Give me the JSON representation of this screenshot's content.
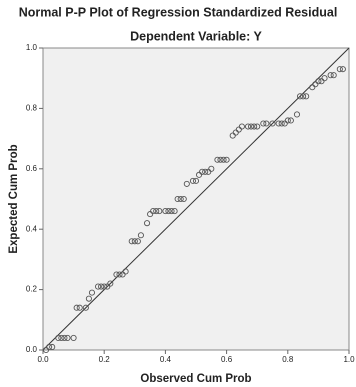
{
  "chart_data": {
    "type": "scatter",
    "title": "Normal P-P Plot of Regression Standardized Residual",
    "subtitle": "Dependent Variable: Y",
    "x_label": "Observed Cum Prob",
    "y_label": "Expected Cum Prob",
    "xlim": [
      0,
      1
    ],
    "ylim": [
      0,
      1
    ],
    "xticks": [
      {
        "value": 0,
        "label": "0.0"
      },
      0.2,
      0.4,
      0.6,
      0.8,
      {
        "value": 1,
        "label": "1.0"
      }
    ],
    "yticks": [
      {
        "value": 0,
        "label": "0.0"
      },
      0.2,
      0.4,
      0.6,
      0.8,
      {
        "value": 1,
        "label": "1.0"
      }
    ],
    "color": "#555555",
    "x": [
      0.01,
      0.02,
      0.03,
      0.05,
      0.06,
      0.07,
      0.08,
      0.1,
      0.11,
      0.12,
      0.14,
      0.15,
      0.16,
      0.18,
      0.19,
      0.2,
      0.21,
      0.22,
      0.24,
      0.25,
      0.26,
      0.27,
      0.29,
      0.3,
      0.31,
      0.32,
      0.34,
      0.35,
      0.36,
      0.37,
      0.38,
      0.4,
      0.41,
      0.42,
      0.43,
      0.44,
      0.45,
      0.46,
      0.47,
      0.49,
      0.5,
      0.51,
      0.52,
      0.53,
      0.54,
      0.55,
      0.57,
      0.58,
      0.59,
      0.6,
      0.62,
      0.63,
      0.64,
      0.65,
      0.67,
      0.68,
      0.69,
      0.7,
      0.72,
      0.73,
      0.75,
      0.77,
      0.78,
      0.79,
      0.8,
      0.81,
      0.83,
      0.84,
      0.85,
      0.86,
      0.88,
      0.89,
      0.9,
      0.91,
      0.92,
      0.94,
      0.95,
      0.97,
      0.98
    ],
    "values": [
      0.0,
      0.01,
      0.01,
      0.04,
      0.04,
      0.04,
      0.04,
      0.04,
      0.14,
      0.14,
      0.14,
      0.17,
      0.19,
      0.21,
      0.21,
      0.21,
      0.21,
      0.22,
      0.25,
      0.25,
      0.25,
      0.26,
      0.36,
      0.36,
      0.36,
      0.38,
      0.42,
      0.45,
      0.46,
      0.46,
      0.46,
      0.46,
      0.46,
      0.46,
      0.46,
      0.5,
      0.5,
      0.5,
      0.55,
      0.56,
      0.56,
      0.58,
      0.59,
      0.59,
      0.59,
      0.6,
      0.63,
      0.63,
      0.63,
      0.63,
      0.71,
      0.72,
      0.73,
      0.74,
      0.74,
      0.74,
      0.74,
      0.74,
      0.75,
      0.75,
      0.75,
      0.75,
      0.75,
      0.75,
      0.76,
      0.76,
      0.78,
      0.84,
      0.84,
      0.84,
      0.87,
      0.88,
      0.89,
      0.89,
      0.9,
      0.91,
      0.91,
      0.93,
      0.93
    ]
  }
}
